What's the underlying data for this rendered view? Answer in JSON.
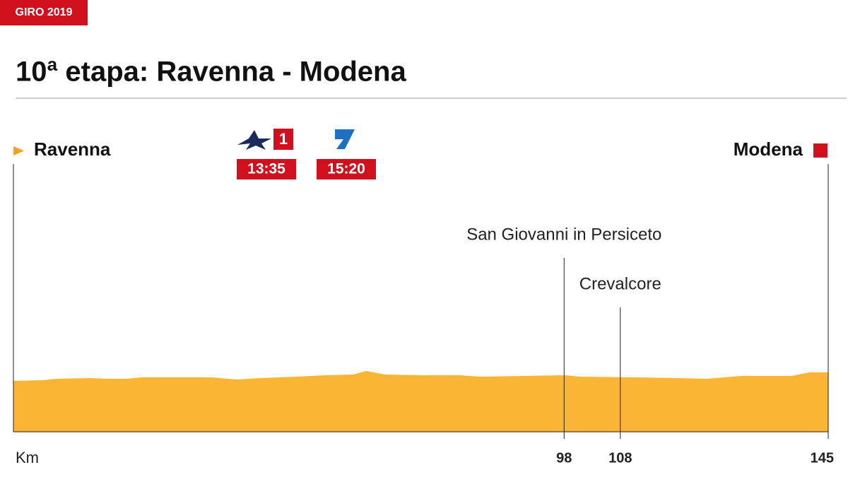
{
  "badge": "GIRO 2019",
  "title": "10ª etapa: Ravenna - Modena",
  "broadcasts": [
    {
      "time": "13:35"
    },
    {
      "time": "15:20"
    }
  ],
  "chart_data": {
    "type": "profile",
    "start": "Ravenna",
    "finish": "Modena",
    "x_label": "Km",
    "xlim": [
      0,
      145
    ],
    "xticks": [
      98,
      108,
      145
    ],
    "places": [
      {
        "name": "San Giovanni in Persiceto",
        "km": 98
      },
      {
        "name": "Crevalcore",
        "km": 108
      }
    ],
    "color": "#fbb536"
  }
}
